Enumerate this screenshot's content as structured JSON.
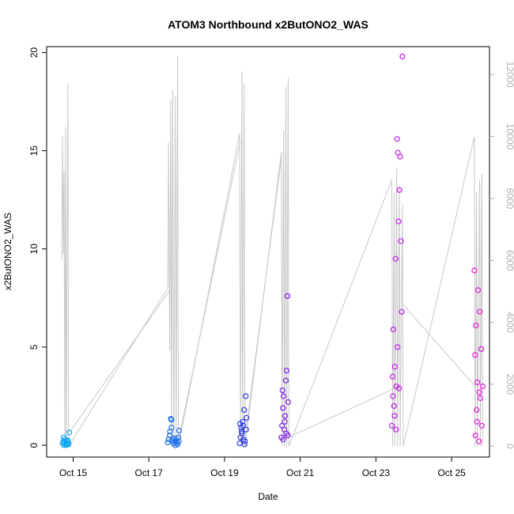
{
  "chart_data": {
    "type": "scatter",
    "title": "ATOM3 Northbound x2ButONO2_WAS",
    "xlabel": "Date",
    "ylabel": "x2ButONO2_WAS",
    "x_tick_labels": [
      "Oct 15",
      "Oct 17",
      "Oct 19",
      "Oct 21",
      "Oct 23",
      "Oct 25"
    ],
    "x_tick_days": [
      15,
      17,
      19,
      21,
      23,
      25
    ],
    "xlim_days": [
      14.3,
      26.0
    ],
    "ylim": [
      -0.6,
      20.3
    ],
    "y_ticks": [
      0,
      5,
      10,
      15,
      20
    ],
    "y_tick_labels": [
      "0",
      "5",
      "10",
      "15",
      "20"
    ],
    "y2lim": [
      -350,
      12900
    ],
    "y2_ticks": [
      0,
      2000,
      4000,
      6000,
      8000,
      10000,
      12000
    ],
    "y2_tick_labels": [
      "0",
      "2000",
      "4000",
      "6000",
      "8000",
      "10000",
      "12000"
    ],
    "secondary_series_note": "gray altitude-like trace on right axis",
    "altitude_trace": [
      {
        "x": 14.7,
        "y": 6000
      },
      {
        "x": 14.72,
        "y": 10000
      },
      {
        "x": 14.74,
        "y": 6200
      },
      {
        "x": 14.76,
        "y": 8900
      },
      {
        "x": 14.78,
        "y": 0
      },
      {
        "x": 14.8,
        "y": 10300
      },
      {
        "x": 14.82,
        "y": 0
      },
      {
        "x": 14.86,
        "y": 11700
      },
      {
        "x": 14.88,
        "y": 0
      },
      {
        "x": 17.5,
        "y": 5100
      },
      {
        "x": 17.52,
        "y": 9800
      },
      {
        "x": 17.55,
        "y": 3100
      },
      {
        "x": 17.58,
        "y": 11200
      },
      {
        "x": 17.6,
        "y": 0
      },
      {
        "x": 17.63,
        "y": 11500
      },
      {
        "x": 17.66,
        "y": 0
      },
      {
        "x": 17.7,
        "y": 11300
      },
      {
        "x": 17.72,
        "y": 0
      },
      {
        "x": 17.76,
        "y": 12600
      },
      {
        "x": 17.78,
        "y": 0
      },
      {
        "x": 19.4,
        "y": 10100
      },
      {
        "x": 19.42,
        "y": 0
      },
      {
        "x": 19.46,
        "y": 12100
      },
      {
        "x": 19.48,
        "y": 0
      },
      {
        "x": 19.52,
        "y": 11700
      },
      {
        "x": 19.54,
        "y": 0
      },
      {
        "x": 20.5,
        "y": 9500
      },
      {
        "x": 20.52,
        "y": 0
      },
      {
        "x": 20.56,
        "y": 10200
      },
      {
        "x": 20.58,
        "y": 0
      },
      {
        "x": 20.62,
        "y": 11600
      },
      {
        "x": 20.64,
        "y": 0
      },
      {
        "x": 20.68,
        "y": 11900
      },
      {
        "x": 20.7,
        "y": 0
      },
      {
        "x": 23.42,
        "y": 8600
      },
      {
        "x": 23.44,
        "y": 0
      },
      {
        "x": 23.48,
        "y": 8200
      },
      {
        "x": 23.5,
        "y": 0
      },
      {
        "x": 23.55,
        "y": 9000
      },
      {
        "x": 23.57,
        "y": 0
      },
      {
        "x": 23.62,
        "y": 8400
      },
      {
        "x": 23.64,
        "y": 0
      },
      {
        "x": 23.7,
        "y": 7800
      },
      {
        "x": 23.72,
        "y": 0
      },
      {
        "x": 25.6,
        "y": 10000
      },
      {
        "x": 25.62,
        "y": 0
      },
      {
        "x": 25.66,
        "y": 8200
      },
      {
        "x": 25.68,
        "y": 0
      },
      {
        "x": 25.74,
        "y": 8600
      },
      {
        "x": 25.76,
        "y": 0
      },
      {
        "x": 25.8,
        "y": 8800
      },
      {
        "x": 25.82,
        "y": 0
      }
    ],
    "series": [
      {
        "color": "#0ea5f0",
        "points": [
          {
            "x": 14.72,
            "y": 0.1
          },
          {
            "x": 14.74,
            "y": 0.2
          },
          {
            "x": 14.76,
            "y": 0.0
          },
          {
            "x": 14.78,
            "y": 0.3
          },
          {
            "x": 14.8,
            "y": 0.05
          },
          {
            "x": 14.82,
            "y": 0.12
          },
          {
            "x": 14.84,
            "y": 0.02
          },
          {
            "x": 14.86,
            "y": 0.25
          },
          {
            "x": 14.88,
            "y": 0.08
          },
          {
            "x": 14.9,
            "y": 0.65
          },
          {
            "x": 14.75,
            "y": 0.4
          },
          {
            "x": 14.77,
            "y": 0.15
          },
          {
            "x": 14.83,
            "y": 0.22
          },
          {
            "x": 14.87,
            "y": 0.05
          }
        ]
      },
      {
        "color": "#1e6fe8",
        "points": [
          {
            "x": 17.5,
            "y": 0.15
          },
          {
            "x": 17.52,
            "y": 0.3
          },
          {
            "x": 17.55,
            "y": 0.5
          },
          {
            "x": 17.58,
            "y": 1.35
          },
          {
            "x": 17.6,
            "y": 1.3
          },
          {
            "x": 17.62,
            "y": 0.25
          },
          {
            "x": 17.65,
            "y": 0.1
          },
          {
            "x": 17.68,
            "y": 0.2
          },
          {
            "x": 17.7,
            "y": 0.0
          },
          {
            "x": 17.72,
            "y": 0.3
          },
          {
            "x": 17.74,
            "y": 0.15
          },
          {
            "x": 17.76,
            "y": 0.05
          },
          {
            "x": 17.78,
            "y": 0.4
          },
          {
            "x": 17.8,
            "y": 0.75
          },
          {
            "x": 17.6,
            "y": 0.9
          },
          {
            "x": 17.56,
            "y": 0.7
          },
          {
            "x": 17.66,
            "y": 0.35
          },
          {
            "x": 17.79,
            "y": 0.2
          }
        ]
      },
      {
        "color": "#2d3be0",
        "points": [
          {
            "x": 19.4,
            "y": 0.1
          },
          {
            "x": 19.42,
            "y": 0.4
          },
          {
            "x": 19.44,
            "y": 0.9
          },
          {
            "x": 19.46,
            "y": 0.6
          },
          {
            "x": 19.48,
            "y": 1.2
          },
          {
            "x": 19.5,
            "y": 0.3
          },
          {
            "x": 19.52,
            "y": 1.8
          },
          {
            "x": 19.54,
            "y": 0.2
          },
          {
            "x": 19.56,
            "y": 2.5
          },
          {
            "x": 19.58,
            "y": 1.4
          },
          {
            "x": 19.45,
            "y": 0.7
          },
          {
            "x": 19.49,
            "y": 1.0
          },
          {
            "x": 19.53,
            "y": 0.05
          },
          {
            "x": 19.57,
            "y": 0.8
          },
          {
            "x": 19.41,
            "y": 1.1
          }
        ]
      },
      {
        "color": "#7a1ee0",
        "points": [
          {
            "x": 20.5,
            "y": 0.4
          },
          {
            "x": 20.52,
            "y": 1.0
          },
          {
            "x": 20.54,
            "y": 1.9
          },
          {
            "x": 20.56,
            "y": 2.5
          },
          {
            "x": 20.58,
            "y": 0.8
          },
          {
            "x": 20.6,
            "y": 1.5
          },
          {
            "x": 20.62,
            "y": 3.3
          },
          {
            "x": 20.64,
            "y": 3.8
          },
          {
            "x": 20.66,
            "y": 7.6
          },
          {
            "x": 20.68,
            "y": 2.2
          },
          {
            "x": 20.55,
            "y": 0.3
          },
          {
            "x": 20.59,
            "y": 1.2
          },
          {
            "x": 20.63,
            "y": 0.6
          },
          {
            "x": 20.67,
            "y": 0.5
          },
          {
            "x": 20.53,
            "y": 2.8
          }
        ]
      },
      {
        "color": "#c21bea",
        "points": [
          {
            "x": 23.42,
            "y": 1.0
          },
          {
            "x": 23.44,
            "y": 3.5
          },
          {
            "x": 23.46,
            "y": 5.9
          },
          {
            "x": 23.48,
            "y": 2.0
          },
          {
            "x": 23.5,
            "y": 4.0
          },
          {
            "x": 23.52,
            "y": 9.5
          },
          {
            "x": 23.54,
            "y": 3.0
          },
          {
            "x": 23.56,
            "y": 15.6
          },
          {
            "x": 23.58,
            "y": 14.9
          },
          {
            "x": 23.6,
            "y": 11.4
          },
          {
            "x": 23.62,
            "y": 13.0
          },
          {
            "x": 23.64,
            "y": 14.7
          },
          {
            "x": 23.66,
            "y": 10.4
          },
          {
            "x": 23.68,
            "y": 6.8
          },
          {
            "x": 23.7,
            "y": 19.8
          },
          {
            "x": 23.45,
            "y": 2.5
          },
          {
            "x": 23.49,
            "y": 1.5
          },
          {
            "x": 23.53,
            "y": 0.8
          },
          {
            "x": 23.57,
            "y": 5.0
          },
          {
            "x": 23.61,
            "y": 2.9
          }
        ]
      },
      {
        "color": "#e81ad8",
        "points": [
          {
            "x": 25.6,
            "y": 8.9
          },
          {
            "x": 25.62,
            "y": 4.6
          },
          {
            "x": 25.64,
            "y": 6.1
          },
          {
            "x": 25.66,
            "y": 1.8
          },
          {
            "x": 25.68,
            "y": 3.2
          },
          {
            "x": 25.7,
            "y": 7.9
          },
          {
            "x": 25.72,
            "y": 0.2
          },
          {
            "x": 25.74,
            "y": 6.8
          },
          {
            "x": 25.76,
            "y": 2.4
          },
          {
            "x": 25.78,
            "y": 4.9
          },
          {
            "x": 25.8,
            "y": 1.0
          },
          {
            "x": 25.82,
            "y": 3.0
          },
          {
            "x": 25.63,
            "y": 0.5
          },
          {
            "x": 25.67,
            "y": 1.2
          },
          {
            "x": 25.73,
            "y": 2.7
          }
        ]
      }
    ],
    "connecting_lines": [
      {
        "x1": 14.9,
        "y1": 0.65,
        "x2": 17.56,
        "y2": 7.9
      },
      {
        "x1": 17.8,
        "y1": 0.4,
        "x2": 19.42,
        "y2": 15.5
      },
      {
        "x1": 19.57,
        "y1": 0.8,
        "x2": 20.5,
        "y2": 14.6
      },
      {
        "x1": 20.68,
        "y1": 0.4,
        "x2": 23.5,
        "y2": 2.9
      },
      {
        "x1": 23.7,
        "y1": 7.2,
        "x2": 25.62,
        "y2": 3.0
      }
    ]
  }
}
